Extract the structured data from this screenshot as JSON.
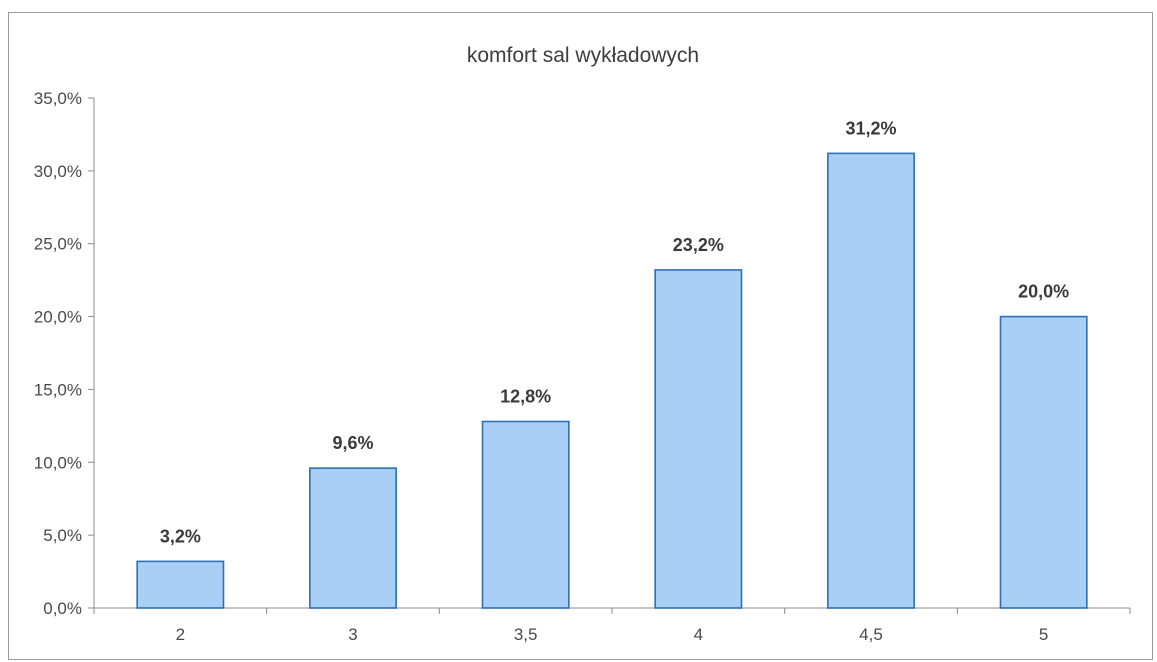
{
  "chart_data": {
    "type": "bar",
    "title": "komfort sal wykładowych",
    "xlabel": "",
    "ylabel": "",
    "categories": [
      "2",
      "3",
      "3,5",
      "4",
      "4,5",
      "5"
    ],
    "values": [
      3.2,
      9.6,
      12.8,
      23.2,
      31.2,
      20.0
    ],
    "data_labels": [
      "3,2%",
      "9,6%",
      "12,8%",
      "23,2%",
      "31,2%",
      "20,0%"
    ],
    "y_ticks": [
      "0,0%",
      "5,0%",
      "10,0%",
      "15,0%",
      "20,0%",
      "25,0%",
      "30,0%",
      "35,0%"
    ],
    "y_tick_values": [
      0,
      5,
      10,
      15,
      20,
      25,
      30,
      35
    ],
    "ylim": [
      0,
      35
    ],
    "grid": false,
    "legend": "none",
    "colors": {
      "bar_fill": "#a9cff5",
      "bar_stroke": "#2e6fb5",
      "axis": "#8c8c8c"
    }
  }
}
